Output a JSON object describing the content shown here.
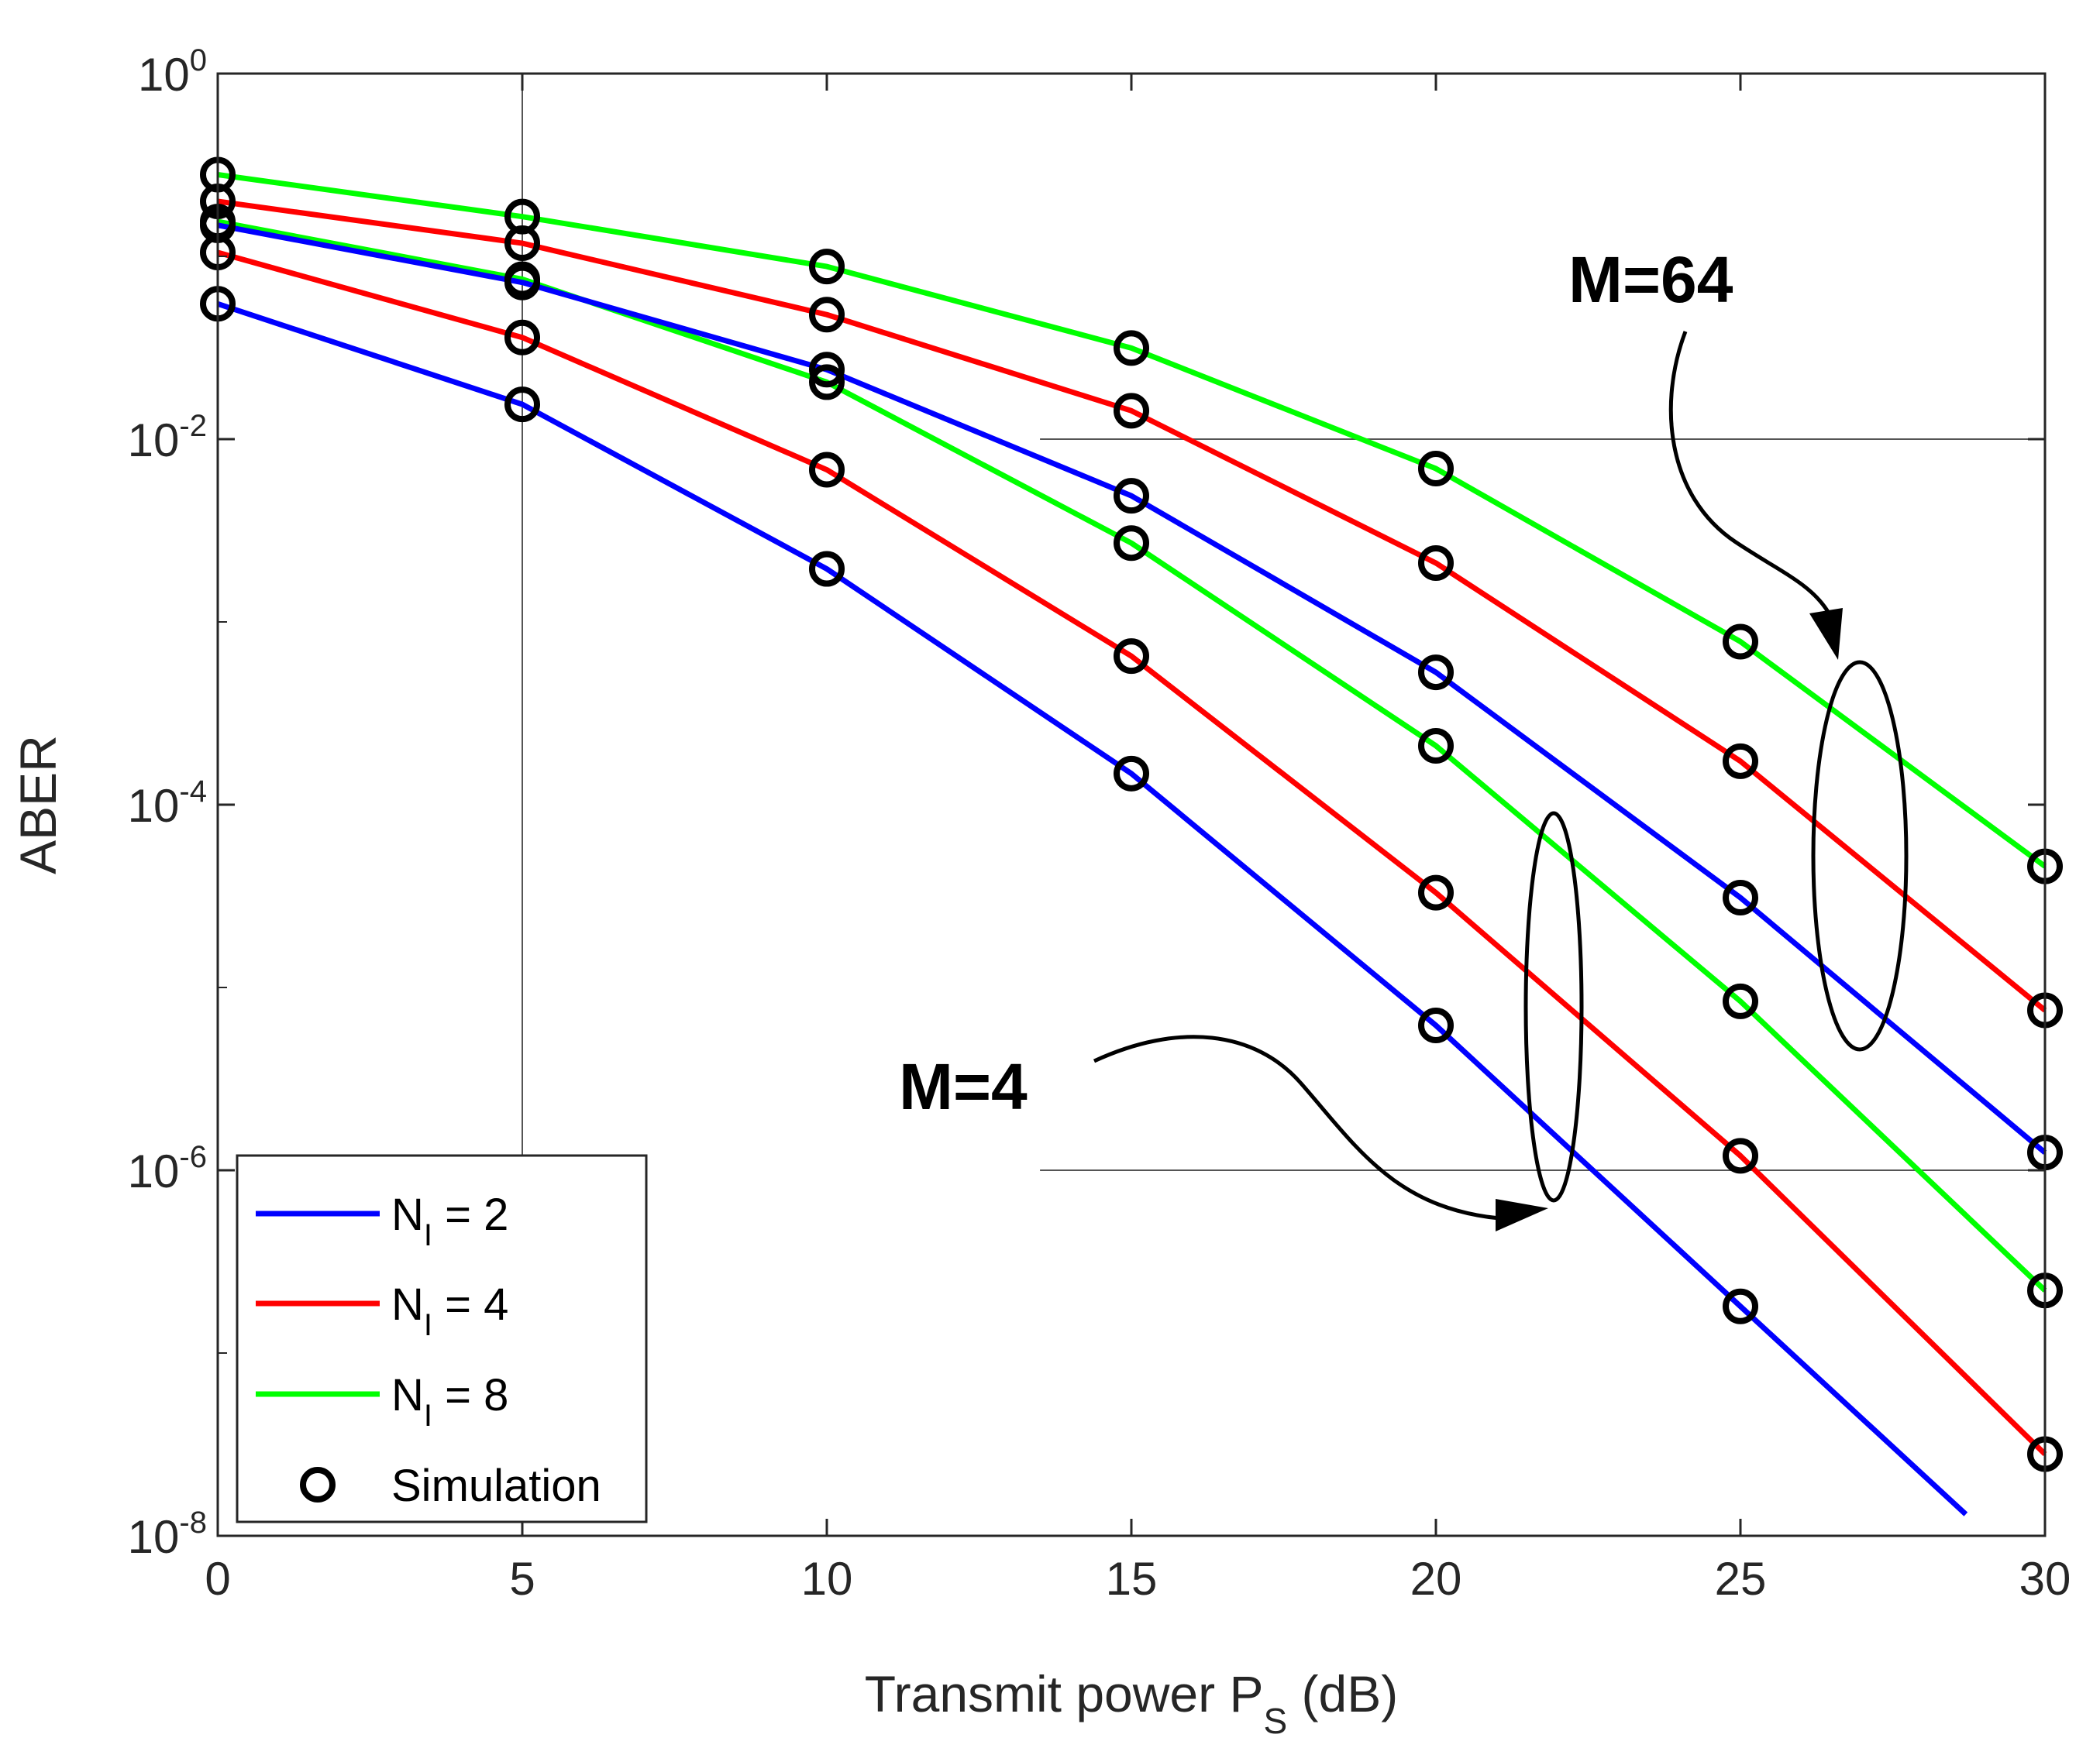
{
  "chart_data": {
    "type": "line",
    "scale_y": "log",
    "x": [
      0,
      5,
      10,
      15,
      20,
      25,
      30
    ],
    "xlim": [
      0,
      30
    ],
    "ylim_exponent": [
      -8,
      0
    ],
    "xticks": [
      "0",
      "5",
      "10",
      "15",
      "20",
      "25",
      "30"
    ],
    "yticks": [
      {
        "base": "10",
        "exp": "0"
      },
      {
        "base": "10",
        "exp": "-2"
      },
      {
        "base": "10",
        "exp": "-4"
      },
      {
        "base": "10",
        "exp": "-6"
      },
      {
        "base": "10",
        "exp": "-8"
      }
    ],
    "xlabel": {
      "main": "Transmit power P",
      "sub": "S",
      "unit": " (dB)"
    },
    "ylabel": "ABER",
    "series": [
      {
        "name": "N_I = 2",
        "group": "M=4",
        "color": "#0000ff",
        "x_end": 28.7,
        "values": [
          0.055,
          0.0155,
          0.00195,
          0.000148,
          6.2e-06,
          1.8e-07,
          null
        ]
      },
      {
        "name": "N_I = 4",
        "group": "M=4",
        "color": "#ff0000",
        "x_end": 30,
        "values": [
          0.105,
          0.036,
          0.0068,
          0.00065,
          3.3e-05,
          1.2e-06,
          2.8e-08
        ]
      },
      {
        "name": "N_I = 8",
        "group": "M=4",
        "color": "#00ff00",
        "x_end": 30,
        "values": [
          0.155,
          0.075,
          0.0205,
          0.0027,
          0.00021,
          8.4e-06,
          2.2e-07
        ]
      },
      {
        "name": "N_I = 2",
        "group": "M=64",
        "color": "#0000ff",
        "x_end": 30,
        "values": [
          0.148,
          0.072,
          0.024,
          0.0049,
          0.00053,
          3.1e-05,
          1.25e-06
        ]
      },
      {
        "name": "N_I = 4",
        "group": "M=64",
        "color": "#ff0000",
        "x_end": 30,
        "values": [
          0.2,
          0.118,
          0.048,
          0.0143,
          0.0021,
          0.000173,
          7.5e-06
        ]
      },
      {
        "name": "N_I = 8",
        "group": "M=64",
        "color": "#00ff00",
        "x_end": 30,
        "values": [
          0.28,
          0.165,
          0.088,
          0.0315,
          0.0069,
          0.00078,
          4.6e-05
        ]
      }
    ],
    "legend": {
      "position": "bottom-left",
      "entries": [
        {
          "main": "N",
          "sub": "I",
          "rest": " = 2",
          "color": "#0000ff",
          "kind": "line"
        },
        {
          "main": "N",
          "sub": "I",
          "rest": " = 4",
          "color": "#ff0000",
          "kind": "line"
        },
        {
          "main": "N",
          "sub": "I",
          "rest": " = 8",
          "color": "#00ff00",
          "kind": "line"
        },
        {
          "main": "Simulation",
          "sub": "",
          "rest": "",
          "color": "#000000",
          "kind": "marker"
        }
      ]
    },
    "annotations": [
      {
        "text": "M=64",
        "target_group": "M=64"
      },
      {
        "text": "M=4",
        "target_group": "M=4"
      }
    ]
  }
}
